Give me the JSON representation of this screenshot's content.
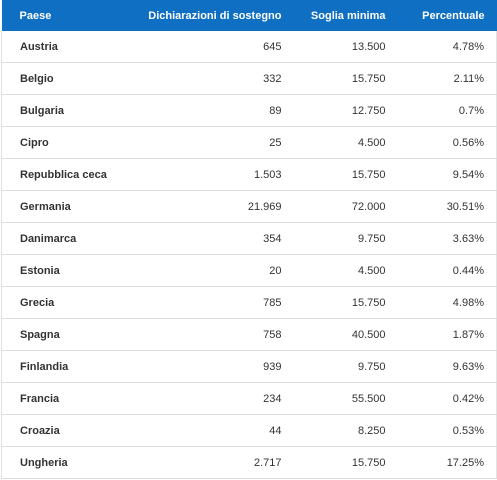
{
  "table": {
    "header": [
      "Paese",
      "Dichiarazioni di sostegno",
      "Soglia minima",
      "Percentuale"
    ],
    "rows": [
      [
        "Austria",
        "645",
        "13.500",
        "4.78%"
      ],
      [
        "Belgio",
        "332",
        "15.750",
        "2.11%"
      ],
      [
        "Bulgaria",
        "89",
        "12.750",
        "0.7%"
      ],
      [
        "Cipro",
        "25",
        "4.500",
        "0.56%"
      ],
      [
        "Repubblica ceca",
        "1.503",
        "15.750",
        "9.54%"
      ],
      [
        "Germania",
        "21.969",
        "72.000",
        "30.51%"
      ],
      [
        "Danimarca",
        "354",
        "9.750",
        "3.63%"
      ],
      [
        "Estonia",
        "20",
        "4.500",
        "0.44%"
      ],
      [
        "Grecia",
        "785",
        "15.750",
        "4.98%"
      ],
      [
        "Spagna",
        "758",
        "40.500",
        "1.87%"
      ],
      [
        "Finlandia",
        "939",
        "9.750",
        "9.63%"
      ],
      [
        "Francia",
        "234",
        "55.500",
        "0.42%"
      ],
      [
        "Croazia",
        "44",
        "8.250",
        "0.53%"
      ],
      [
        "Ungheria",
        "2.717",
        "15.750",
        "17.25%"
      ]
    ]
  }
}
